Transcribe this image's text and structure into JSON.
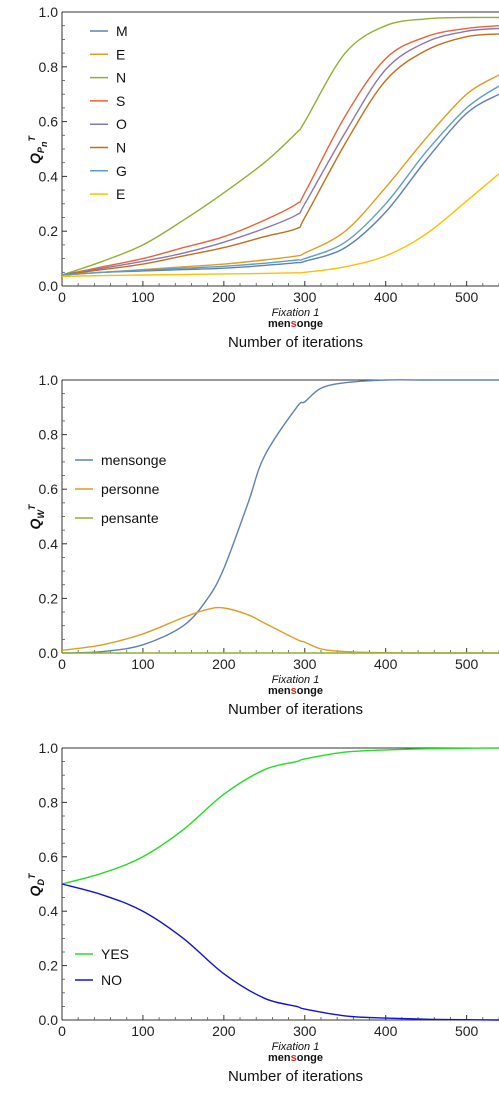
{
  "chart_data": [
    {
      "type": "line",
      "ylabel": {
        "main": "Q",
        "sub": "P",
        "subsub": "n",
        "sup": "T"
      },
      "xlabel": "Number of iterations",
      "fixation_label": "Fixation 1",
      "word": {
        "prefix": "men",
        "highlight": "s",
        "suffix": "onge",
        "highlight_color": "#d62728"
      },
      "xlim": [
        0,
        540
      ],
      "ylim": [
        0,
        1
      ],
      "xticks": [
        "0",
        "100",
        "200",
        "300",
        "400",
        "500"
      ],
      "yticks": [
        "0.0",
        "0.2",
        "0.4",
        "0.6",
        "0.8",
        "1.0"
      ],
      "legend_position": "top-left",
      "x": [
        0,
        50,
        100,
        150,
        200,
        250,
        290,
        300,
        350,
        400,
        450,
        500,
        540
      ],
      "series": [
        {
          "name": "M",
          "color": "#5e81b5",
          "values": [
            0.04,
            0.05,
            0.055,
            0.06,
            0.065,
            0.075,
            0.085,
            0.09,
            0.14,
            0.27,
            0.46,
            0.63,
            0.7
          ]
        },
        {
          "name": "E",
          "color": "#e19c24",
          "values": [
            0.04,
            0.05,
            0.06,
            0.07,
            0.08,
            0.095,
            0.11,
            0.12,
            0.2,
            0.36,
            0.54,
            0.7,
            0.77
          ]
        },
        {
          "name": "N",
          "color": "#8fb032",
          "values": [
            0.04,
            0.09,
            0.15,
            0.24,
            0.34,
            0.45,
            0.56,
            0.6,
            0.85,
            0.95,
            0.975,
            0.98,
            0.98
          ]
        },
        {
          "name": "S",
          "color": "#eb6235",
          "values": [
            0.04,
            0.07,
            0.1,
            0.14,
            0.18,
            0.24,
            0.3,
            0.34,
            0.62,
            0.83,
            0.91,
            0.94,
            0.95
          ]
        },
        {
          "name": "O",
          "color": "#8778b3",
          "values": [
            0.04,
            0.065,
            0.09,
            0.12,
            0.16,
            0.21,
            0.26,
            0.3,
            0.56,
            0.79,
            0.89,
            0.93,
            0.94
          ]
        },
        {
          "name": "N",
          "color": "#c56e1a",
          "values": [
            0.04,
            0.06,
            0.08,
            0.11,
            0.14,
            0.18,
            0.21,
            0.25,
            0.52,
            0.75,
            0.86,
            0.91,
            0.92
          ]
        },
        {
          "name": "G",
          "color": "#5d9ec7",
          "values": [
            0.04,
            0.05,
            0.058,
            0.065,
            0.072,
            0.083,
            0.095,
            0.1,
            0.16,
            0.3,
            0.49,
            0.65,
            0.73
          ]
        },
        {
          "name": "E",
          "color": "#ffbf00",
          "values": [
            0.035,
            0.038,
            0.04,
            0.042,
            0.044,
            0.046,
            0.048,
            0.05,
            0.07,
            0.11,
            0.19,
            0.31,
            0.41
          ]
        }
      ]
    },
    {
      "type": "line",
      "ylabel": {
        "main": "Q",
        "sub": "W",
        "subsub": "",
        "sup": "T"
      },
      "xlabel": "Number of iterations",
      "fixation_label": "Fixation 1",
      "word": {
        "prefix": "men",
        "highlight": "s",
        "suffix": "onge",
        "highlight_color": "#d62728"
      },
      "xlim": [
        0,
        540
      ],
      "ylim": [
        0,
        1
      ],
      "xticks": [
        "0",
        "100",
        "200",
        "300",
        "400",
        "500"
      ],
      "yticks": [
        "0.0",
        "0.2",
        "0.4",
        "0.6",
        "0.8",
        "1.0"
      ],
      "legend_position": "middle-left",
      "x": [
        0,
        50,
        100,
        150,
        180,
        200,
        230,
        250,
        290,
        300,
        320,
        350,
        400,
        450,
        500,
        540
      ],
      "series": [
        {
          "name": "mensonge",
          "color": "#5e81b5",
          "values": [
            0.0,
            0.005,
            0.03,
            0.1,
            0.2,
            0.31,
            0.55,
            0.72,
            0.9,
            0.92,
            0.97,
            0.99,
            1.0,
            1.0,
            1.0,
            1.0
          ]
        },
        {
          "name": "personne",
          "color": "#e19c24",
          "values": [
            0.01,
            0.03,
            0.07,
            0.13,
            0.16,
            0.165,
            0.14,
            0.11,
            0.05,
            0.04,
            0.015,
            0.005,
            0.001,
            0.0,
            0.0,
            0.0
          ]
        },
        {
          "name": "pensante",
          "color": "#8fb032",
          "values": [
            0.0,
            0.0,
            0.0,
            0.0,
            0.0,
            0.0,
            0.0,
            0.0,
            0.0,
            0.0,
            0.0,
            0.0,
            0.0,
            0.0,
            0.0,
            0.0
          ]
        }
      ]
    },
    {
      "type": "line",
      "ylabel": {
        "main": "Q",
        "sub": "D",
        "subsub": "",
        "sup": "T"
      },
      "xlabel": "Number of iterations",
      "fixation_label": "Fixation 1",
      "word": {
        "prefix": "men",
        "highlight": "s",
        "suffix": "onge",
        "highlight_color": "#d62728"
      },
      "xlim": [
        0,
        540
      ],
      "ylim": [
        0,
        1
      ],
      "xticks": [
        "0",
        "100",
        "200",
        "300",
        "400",
        "500"
      ],
      "yticks": [
        "0.0",
        "0.2",
        "0.4",
        "0.6",
        "0.8",
        "1.0"
      ],
      "legend_position": "bottom-left",
      "x": [
        0,
        50,
        100,
        150,
        200,
        250,
        290,
        300,
        350,
        400,
        450,
        500,
        540
      ],
      "series": [
        {
          "name": "YES",
          "color": "#22dd22",
          "values": [
            0.5,
            0.54,
            0.6,
            0.7,
            0.83,
            0.92,
            0.95,
            0.96,
            0.985,
            0.993,
            0.997,
            0.999,
            1.0
          ]
        },
        {
          "name": "NO",
          "color": "#1111dd",
          "values": [
            0.5,
            0.46,
            0.4,
            0.3,
            0.17,
            0.08,
            0.05,
            0.04,
            0.015,
            0.007,
            0.003,
            0.001,
            0.0
          ]
        }
      ]
    }
  ]
}
